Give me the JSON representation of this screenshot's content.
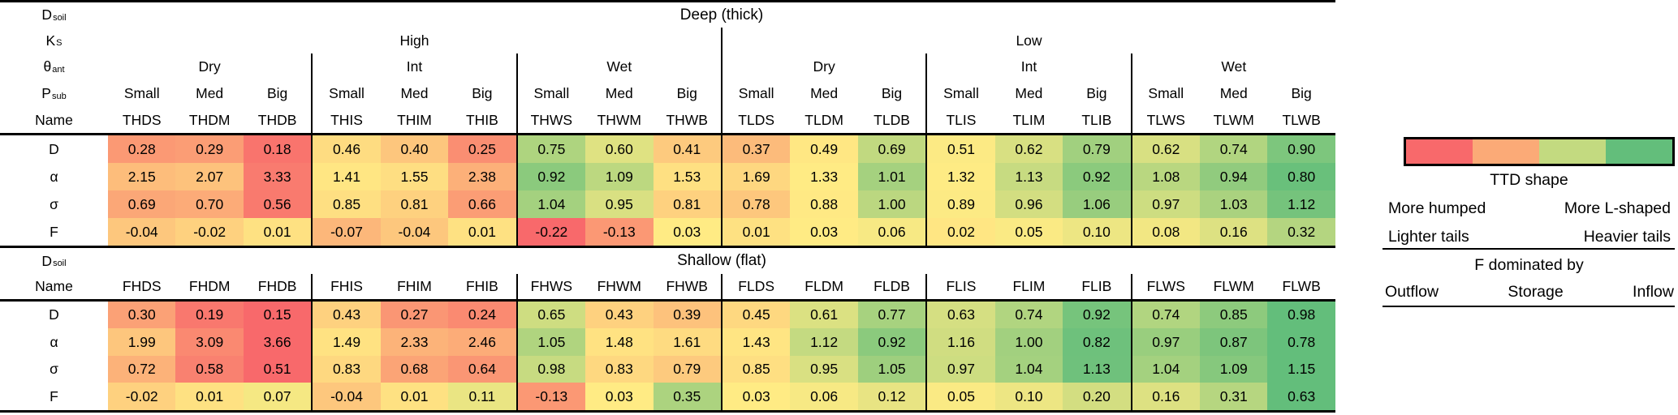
{
  "chart_data": {
    "type": "heatmap",
    "header": {
      "row_labels": [
        {
          "base": "D",
          "sub": "soil"
        },
        {
          "base": "K",
          "sub": "S"
        },
        {
          "base": "θ",
          "sub": "ant"
        },
        {
          "base": "P",
          "sub": "sub"
        },
        {
          "base": "Name",
          "sub": ""
        }
      ],
      "ks_groups": [
        "High",
        "Low"
      ],
      "theta_groups": [
        "Dry",
        "Int",
        "Wet",
        "Dry",
        "Int",
        "Wet"
      ],
      "psub_row": [
        "Small",
        "Med",
        "Big",
        "Small",
        "Med",
        "Big",
        "Small",
        "Med",
        "Big",
        "Small",
        "Med",
        "Big",
        "Small",
        "Med",
        "Big",
        "Small",
        "Med",
        "Big"
      ]
    },
    "sections": [
      {
        "title": "Deep (thick)",
        "dsoil_label": {
          "base": "D",
          "sub": "soil"
        },
        "name_label": "Name",
        "names": [
          "THDS",
          "THDM",
          "THDB",
          "THIS",
          "THIM",
          "THIB",
          "THWS",
          "THWM",
          "THWB",
          "TLDS",
          "TLDM",
          "TLDB",
          "TLIS",
          "TLIM",
          "TLIB",
          "TLWS",
          "TLWM",
          "TLWB"
        ],
        "rows": [
          {
            "label": "D",
            "values": [
              "0.28",
              "0.29",
              "0.18",
              "0.46",
              "0.40",
              "0.25",
              "0.75",
              "0.60",
              "0.41",
              "0.37",
              "0.49",
              "0.69",
              "0.51",
              "0.62",
              "0.79",
              "0.62",
              "0.74",
              "0.90"
            ]
          },
          {
            "label": "α",
            "values": [
              "2.15",
              "2.07",
              "3.33",
              "1.41",
              "1.55",
              "2.38",
              "0.92",
              "1.09",
              "1.53",
              "1.69",
              "1.33",
              "1.01",
              "1.32",
              "1.13",
              "0.92",
              "1.08",
              "0.94",
              "0.80"
            ]
          },
          {
            "label": "σ",
            "values": [
              "0.69",
              "0.70",
              "0.56",
              "0.85",
              "0.81",
              "0.66",
              "1.04",
              "0.95",
              "0.81",
              "0.78",
              "0.88",
              "1.00",
              "0.89",
              "0.96",
              "1.06",
              "0.97",
              "1.03",
              "1.12"
            ]
          },
          {
            "label": "F",
            "values": [
              "-0.04",
              "-0.02",
              "0.01",
              "-0.07",
              "-0.04",
              "0.01",
              "-0.22",
              "-0.13",
              "0.03",
              "0.01",
              "0.03",
              "0.06",
              "0.02",
              "0.05",
              "0.10",
              "0.08",
              "0.16",
              "0.32"
            ]
          }
        ]
      },
      {
        "title": "Shallow (flat)",
        "dsoil_label": {
          "base": "D",
          "sub": "soil"
        },
        "name_label": "Name",
        "names": [
          "FHDS",
          "FHDM",
          "FHDB",
          "FHIS",
          "FHIM",
          "FHIB",
          "FHWS",
          "FHWM",
          "FHWB",
          "FLDS",
          "FLDM",
          "FLDB",
          "FLIS",
          "FLIM",
          "FLIB",
          "FLWS",
          "FLWM",
          "FLWB"
        ],
        "rows": [
          {
            "label": "D",
            "values": [
              "0.30",
              "0.19",
              "0.15",
              "0.43",
              "0.27",
              "0.24",
              "0.65",
              "0.43",
              "0.39",
              "0.45",
              "0.61",
              "0.77",
              "0.63",
              "0.74",
              "0.92",
              "0.74",
              "0.85",
              "0.98"
            ]
          },
          {
            "label": "α",
            "values": [
              "1.99",
              "3.09",
              "3.66",
              "1.49",
              "2.33",
              "2.46",
              "1.05",
              "1.48",
              "1.61",
              "1.43",
              "1.12",
              "0.92",
              "1.16",
              "1.00",
              "0.82",
              "0.97",
              "0.87",
              "0.78"
            ]
          },
          {
            "label": "σ",
            "values": [
              "0.72",
              "0.58",
              "0.51",
              "0.83",
              "0.68",
              "0.64",
              "0.98",
              "0.83",
              "0.79",
              "0.85",
              "0.95",
              "1.05",
              "0.97",
              "1.04",
              "1.13",
              "1.04",
              "1.09",
              "1.15"
            ]
          },
          {
            "label": "F",
            "values": [
              "-0.02",
              "0.01",
              "0.07",
              "-0.04",
              "0.01",
              "0.11",
              "-0.13",
              "0.03",
              "0.35",
              "0.03",
              "0.06",
              "0.12",
              "0.05",
              "0.10",
              "0.20",
              "0.16",
              "0.31",
              "0.63"
            ]
          }
        ]
      }
    ],
    "colormap": {
      "stops": [
        "#F8696B",
        "#FFEB84",
        "#63BE7B"
      ],
      "reversed_metrics": [
        "α"
      ],
      "midpoint": "median"
    }
  },
  "legend": {
    "bar_colors": [
      "#F8696B",
      "#FBAA77",
      "#C3DA80",
      "#63BE7B"
    ],
    "ttd_title": "TTD shape",
    "humped": "More humped",
    "l_shaped": "More L-shaped",
    "lighter": "Lighter tails",
    "heavier": "Heavier tails",
    "f_title": "F dominated by",
    "outflow": "Outflow",
    "storage": "Storage",
    "inflow": "Inflow"
  }
}
